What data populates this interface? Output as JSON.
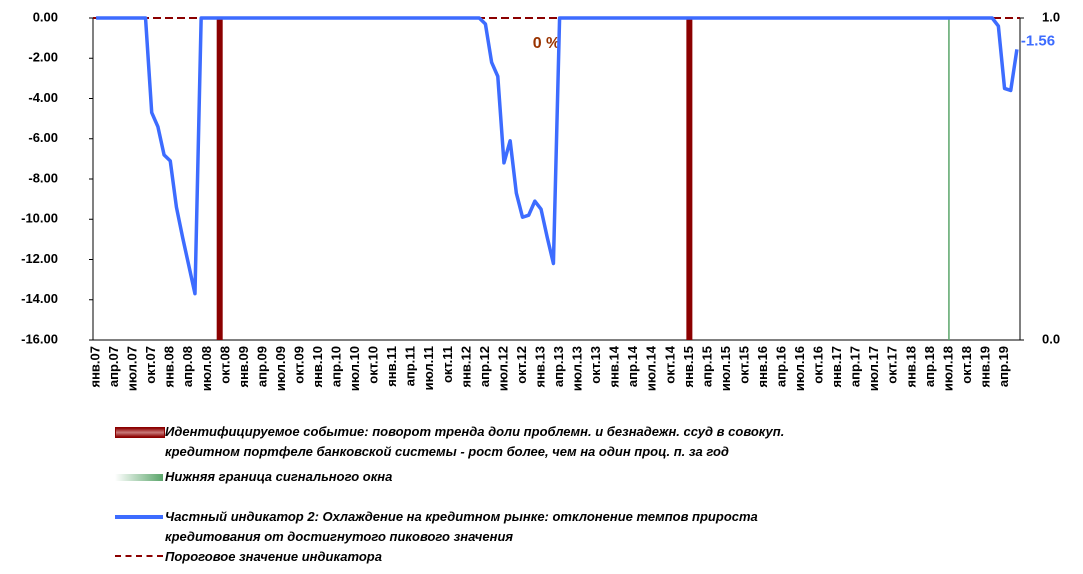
{
  "chart_data": {
    "type": "line",
    "categories": [
      "янв.07",
      null,
      null,
      "апр.07",
      null,
      null,
      "июл.07",
      null,
      null,
      "окт.07",
      null,
      null,
      "янв.08",
      null,
      null,
      "апр.08",
      null,
      null,
      "июл.08",
      null,
      null,
      "окт.08",
      null,
      null,
      "янв.09",
      null,
      null,
      "апр.09",
      null,
      null,
      "июл.09",
      null,
      null,
      "окт.09",
      null,
      null,
      "янв.10",
      null,
      null,
      "апр.10",
      null,
      null,
      "июл.10",
      null,
      null,
      "окт.10",
      null,
      null,
      "янв.11",
      null,
      null,
      "апр.11",
      null,
      null,
      "июл.11",
      null,
      null,
      "окт.11",
      null,
      null,
      "янв.12",
      null,
      null,
      "апр.12",
      null,
      null,
      "июл.12",
      null,
      null,
      "окт.12",
      null,
      null,
      "янв.13",
      null,
      null,
      "апр.13",
      null,
      null,
      "июл.13",
      null,
      null,
      "окт.13",
      null,
      null,
      "янв.14",
      null,
      null,
      "апр.14",
      null,
      null,
      "июл.14",
      null,
      null,
      "окт.14",
      null,
      null,
      "янв.15",
      null,
      null,
      "апр.15",
      null,
      null,
      "июл.15",
      null,
      null,
      "окт.15",
      null,
      null,
      "янв.16",
      null,
      null,
      "апр.16",
      null,
      null,
      "июл.16",
      null,
      null,
      "окт.16",
      null,
      null,
      "янв.17",
      null,
      null,
      "апр.17",
      null,
      null,
      "июл.17",
      null,
      null,
      "окт.17",
      null,
      null,
      "янв.18",
      null,
      null,
      "апр.18",
      null,
      null,
      "июл.18",
      null,
      null,
      "окт.18",
      null,
      null,
      "янв.19",
      null,
      null,
      "апр.19",
      null,
      null
    ],
    "series": [
      {
        "name": "Частный индикатор 2: Охлаждение  на кредитном рынке: отклонение  темпов прироста\nкредитования от достигнутого пикового значения",
        "color": "#3d6cff",
        "values": [
          0,
          0,
          0,
          0,
          0,
          0,
          0,
          0,
          0,
          -4.7,
          -5.4,
          -6.8,
          -7.1,
          -9.4,
          -10.9,
          -12.3,
          -13.7,
          0,
          0,
          0,
          0,
          0,
          0,
          0,
          0,
          0,
          0,
          0,
          0,
          0,
          0,
          0,
          0,
          0,
          0,
          0,
          0,
          0,
          0,
          0,
          0,
          0,
          0,
          0,
          0,
          0,
          0,
          0,
          0,
          0,
          0,
          0,
          0,
          0,
          0,
          0,
          0,
          0,
          0,
          0,
          0,
          0,
          0,
          -0.3,
          -2.2,
          -2.9,
          -7.2,
          -6.1,
          -8.7,
          -9.9,
          -9.8,
          -9.1,
          -9.5,
          -10.9,
          -12.2,
          0,
          0,
          0,
          0,
          0,
          0,
          0,
          0,
          0,
          0,
          0,
          0,
          0,
          0,
          0,
          0,
          0,
          0,
          0,
          0,
          0,
          0,
          0,
          0,
          0,
          0,
          0,
          0,
          0,
          0,
          0,
          0,
          0,
          0,
          0,
          0,
          0,
          0,
          0,
          0,
          0,
          0,
          0,
          0,
          0,
          0,
          0,
          0,
          0,
          0,
          0,
          0,
          0,
          0,
          0,
          0,
          0,
          0,
          0,
          0,
          0,
          0,
          0,
          0,
          0,
          0,
          0,
          0,
          0,
          0,
          0,
          -0.4,
          -3.5,
          -3.6,
          -1.56
        ]
      }
    ],
    "label_last": true,
    "events": {
      "name": "Идентифицируемое  событие: поворот тренда доли проблемн. и безнадежн. ссуд  в совокуп.\nкредитном портфеле банковской системы  - рост более, чем  на один проц. п. за год",
      "color": "#8b0000",
      "indices": [
        20,
        96
      ]
    },
    "signal_window": {
      "name": "Нижняя  граница сигнального окна",
      "color": "#5aa56a",
      "indices": [
        138
      ]
    },
    "threshold": {
      "name": "Пороговое значение  индикатора",
      "color": "#8b0000",
      "value": 0,
      "label": "0 %"
    },
    "ylim": [
      -16,
      0
    ],
    "yticks": [
      {
        "value": 0,
        "label": "0.00"
      },
      {
        "value": -2,
        "label": "-2.00"
      },
      {
        "value": -4,
        "label": "-4.00"
      },
      {
        "value": -6,
        "label": "-6.00"
      },
      {
        "value": -8,
        "label": "-8.00"
      },
      {
        "value": -10,
        "label": "-10.00"
      },
      {
        "value": -12,
        "label": "-12.00"
      },
      {
        "value": -14,
        "label": "-14.00"
      },
      {
        "value": -16,
        "label": "-16.00"
      }
    ],
    "y2lim": [
      0,
      1
    ],
    "y2ticks": [
      {
        "value": 0,
        "label": "0.0"
      },
      {
        "value": 1,
        "label": "1.0"
      }
    ]
  }
}
